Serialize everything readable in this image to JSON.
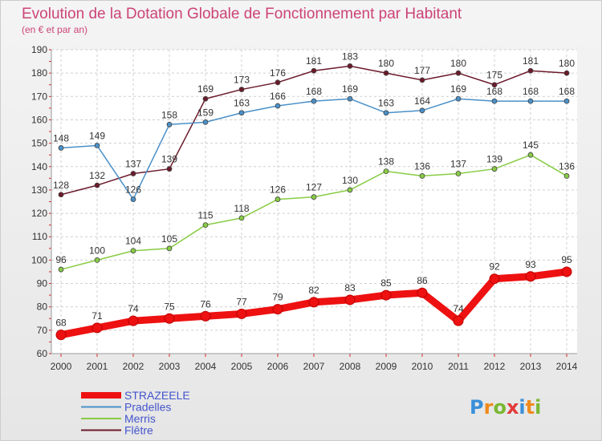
{
  "chart_data": {
    "type": "line",
    "title": "Evolution de la Dotation Globale de Fonctionnement par Habitant",
    "subtitle": "(en € et par an)",
    "xlabel": "",
    "ylabel": "",
    "ylim": [
      60,
      190
    ],
    "yticks": [
      60,
      70,
      80,
      90,
      100,
      110,
      120,
      130,
      140,
      150,
      160,
      170,
      180,
      190
    ],
    "x": [
      "2000",
      "2001",
      "2002",
      "2003",
      "2004",
      "2005",
      "2006",
      "2007",
      "2008",
      "2009",
      "2010",
      "2011",
      "2012",
      "2013",
      "2014"
    ],
    "grid": true,
    "legend_position": "bottom-left",
    "series": [
      {
        "name": "Flêtre",
        "color": "#6b1a2a",
        "values": [
          128,
          132,
          137,
          139,
          169,
          173,
          176,
          181,
          183,
          180,
          177,
          180,
          175,
          181,
          180
        ]
      },
      {
        "name": "Pradelles",
        "color": "#4a90c8",
        "values": [
          148,
          149,
          126,
          158,
          159,
          163,
          166,
          168,
          169,
          163,
          164,
          169,
          168,
          168,
          168
        ]
      },
      {
        "name": "Merris",
        "color": "#88cc44",
        "values": [
          96,
          100,
          104,
          105,
          115,
          118,
          126,
          127,
          130,
          138,
          136,
          137,
          139,
          145,
          136
        ]
      },
      {
        "name": "STRAZEELE",
        "color": "#ee1111",
        "values": [
          68,
          71,
          74,
          75,
          76,
          77,
          79,
          82,
          83,
          85,
          86,
          74,
          92,
          93,
          95
        ]
      }
    ],
    "legend_order": [
      "STRAZEELE",
      "Pradelles",
      "Merris",
      "Flêtre"
    ]
  },
  "logo": {
    "letters": [
      "P",
      "r",
      "o",
      "x",
      "i",
      "t",
      "i"
    ],
    "colors": [
      "#3a8fd8",
      "#f08a1c",
      "#7ab832",
      "#e23b3b",
      "#3a8fd8",
      "#f08a1c",
      "#7ab832"
    ]
  }
}
